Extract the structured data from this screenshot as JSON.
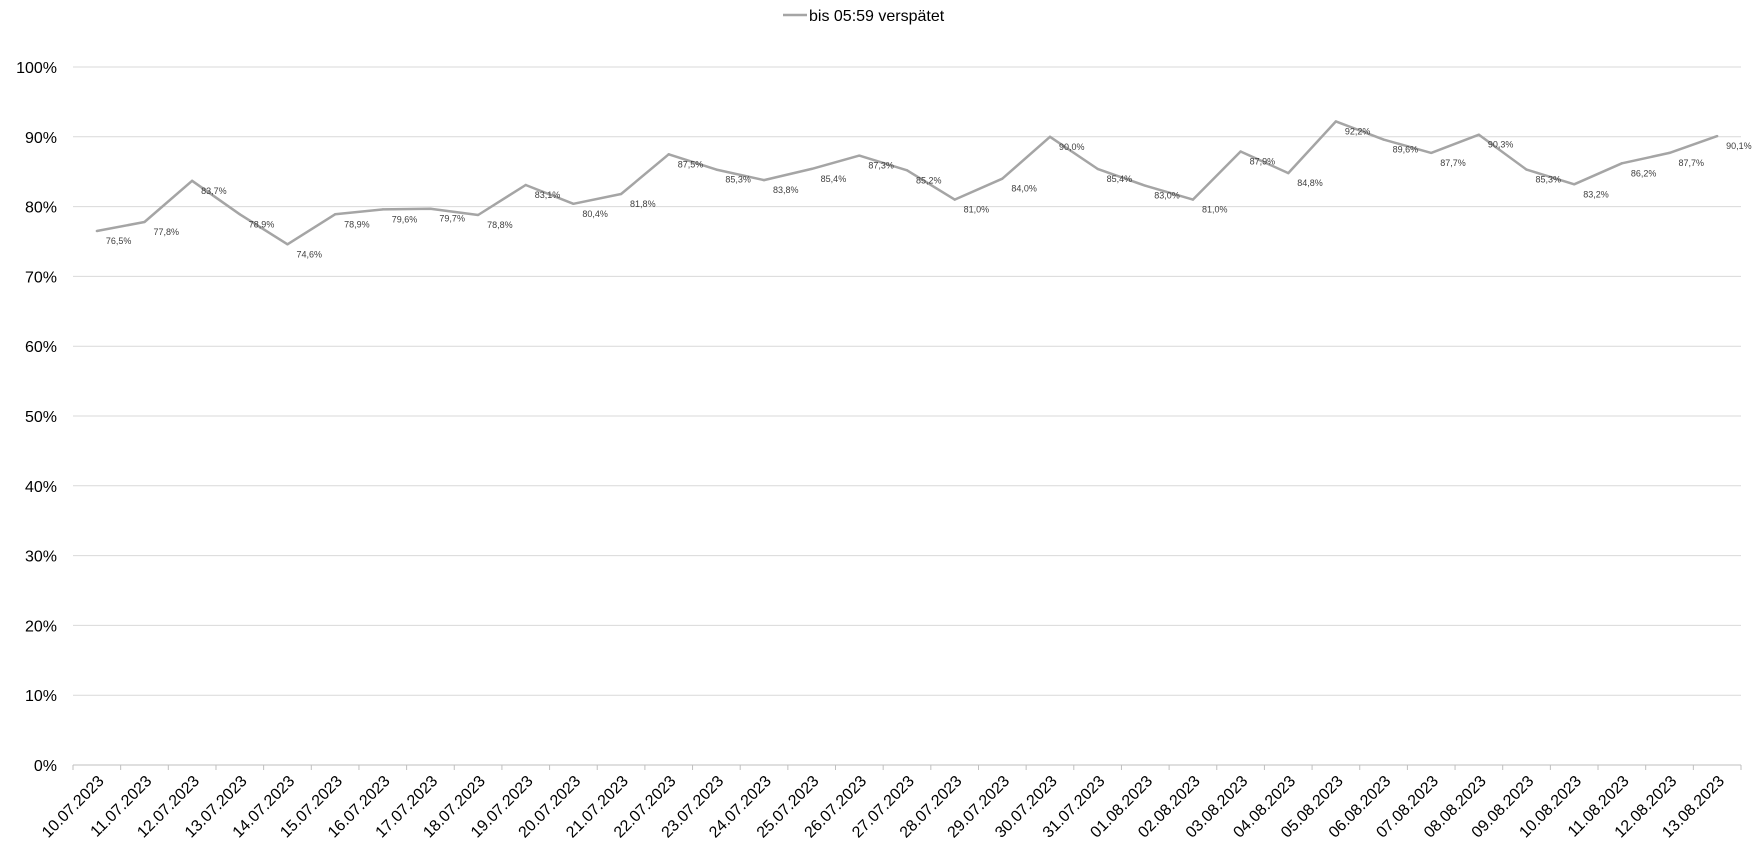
{
  "chart_data": {
    "type": "line",
    "title": "",
    "xlabel": "",
    "ylabel": "",
    "ylim": [
      0,
      1
    ],
    "yticks": [
      "0%",
      "10%",
      "20%",
      "30%",
      "40%",
      "50%",
      "60%",
      "70%",
      "80%",
      "90%",
      "100%"
    ],
    "grid": true,
    "legend_position": "top-center",
    "colors": {
      "line": "#a5a5a5",
      "grid": "#d9d9d9",
      "axis": "#bfbfbf"
    },
    "categories": [
      "10.07.2023",
      "11.07.2023",
      "12.07.2023",
      "13.07.2023",
      "14.07.2023",
      "15.07.2023",
      "16.07.2023",
      "17.07.2023",
      "18.07.2023",
      "19.07.2023",
      "20.07.2023",
      "21.07.2023",
      "22.07.2023",
      "23.07.2023",
      "24.07.2023",
      "25.07.2023",
      "26.07.2023",
      "27.07.2023",
      "28.07.2023",
      "29.07.2023",
      "30.07.2023",
      "31.07.2023",
      "01.08.2023",
      "02.08.2023",
      "03.08.2023",
      "04.08.2023",
      "05.08.2023",
      "06.08.2023",
      "07.08.2023",
      "08.08.2023",
      "09.08.2023",
      "10.08.2023",
      "11.08.2023",
      "12.08.2023",
      "13.08.2023"
    ],
    "series": [
      {
        "name": "bis 05:59 verspätet",
        "values": [
          0.765,
          0.778,
          0.837,
          0.789,
          0.746,
          0.789,
          0.796,
          0.797,
          0.788,
          0.831,
          0.804,
          0.818,
          0.875,
          0.853,
          0.838,
          0.854,
          0.873,
          0.852,
          0.81,
          0.84,
          0.9,
          0.854,
          0.83,
          0.81,
          0.879,
          0.848,
          0.922,
          0.896,
          0.877,
          0.903,
          0.853,
          0.832,
          0.862,
          0.877,
          0.901
        ],
        "labels": [
          "76,5%",
          "77,8%",
          "83,7%",
          "78,9%",
          "74,6%",
          "78,9%",
          "79,6%",
          "79,7%",
          "78,8%",
          "83,1%",
          "80,4%",
          "81,8%",
          "87,5%",
          "85,3%",
          "83,8%",
          "85,4%",
          "87,3%",
          "85,2%",
          "81,0%",
          "84,0%",
          "90,0%",
          "85,4%",
          "83,0%",
          "81,0%",
          "87,9%",
          "84,8%",
          "92,2%",
          "89,6%",
          "87,7%",
          "90,3%",
          "85,3%",
          "83,2%",
          "86,2%",
          "87,7%",
          "90,1%"
        ]
      }
    ]
  }
}
